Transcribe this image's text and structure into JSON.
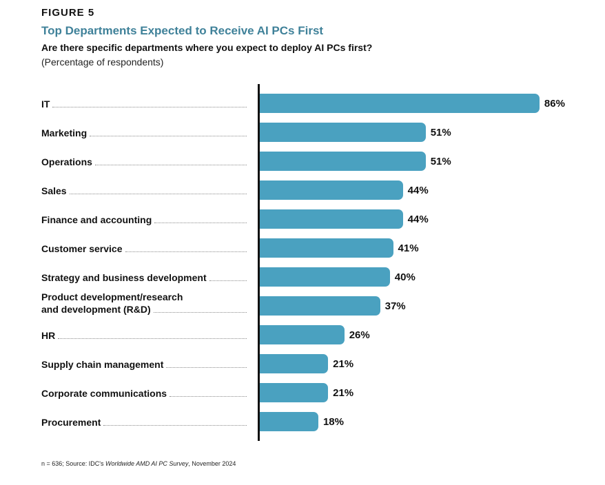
{
  "figure": {
    "label": "FIGURE 5",
    "title": "Top Departments Expected to Receive AI PCs First",
    "question": "Are there specific departments where you expect to deploy AI PCs first?",
    "unit_note": "(Percentage of respondents)",
    "source_prefix": "n = 636; Source: IDC's ",
    "source_italic": "Worldwide AMD AI PC Survey",
    "source_suffix": ", November 2024"
  },
  "colors": {
    "bar": "#4aa1c0",
    "title": "#3f8199",
    "text": "#111111"
  },
  "chart_data": {
    "type": "bar",
    "orientation": "horizontal",
    "title": "Top Departments Expected to Receive AI PCs First",
    "subtitle": "Are there specific departments where you expect to deploy AI PCs first?",
    "xlabel": "",
    "ylabel": "",
    "unit": "%",
    "xlim": [
      0,
      100
    ],
    "grid": false,
    "legend": "none",
    "categories": [
      "IT",
      "Marketing",
      "Operations",
      "Sales",
      "Finance and accounting",
      "Customer service",
      "Strategy and business development",
      "Product development/research and development (R&D)",
      "HR",
      "Supply chain management",
      "Corporate communications",
      "Procurement"
    ],
    "label_lines": [
      [
        "IT"
      ],
      [
        "Marketing"
      ],
      [
        "Operations"
      ],
      [
        "Sales"
      ],
      [
        "Finance and accounting"
      ],
      [
        "Customer service"
      ],
      [
        "Strategy and business development"
      ],
      [
        "Product development/research",
        "and development (R&D)"
      ],
      [
        "HR"
      ],
      [
        "Supply chain management"
      ],
      [
        "Corporate communications"
      ],
      [
        "Procurement"
      ]
    ],
    "values": [
      86,
      51,
      51,
      44,
      44,
      41,
      40,
      37,
      26,
      21,
      21,
      18
    ],
    "value_labels": [
      "86%",
      "51%",
      "51%",
      "44%",
      "44%",
      "41%",
      "40%",
      "37%",
      "26%",
      "21%",
      "21%",
      "18%"
    ]
  }
}
